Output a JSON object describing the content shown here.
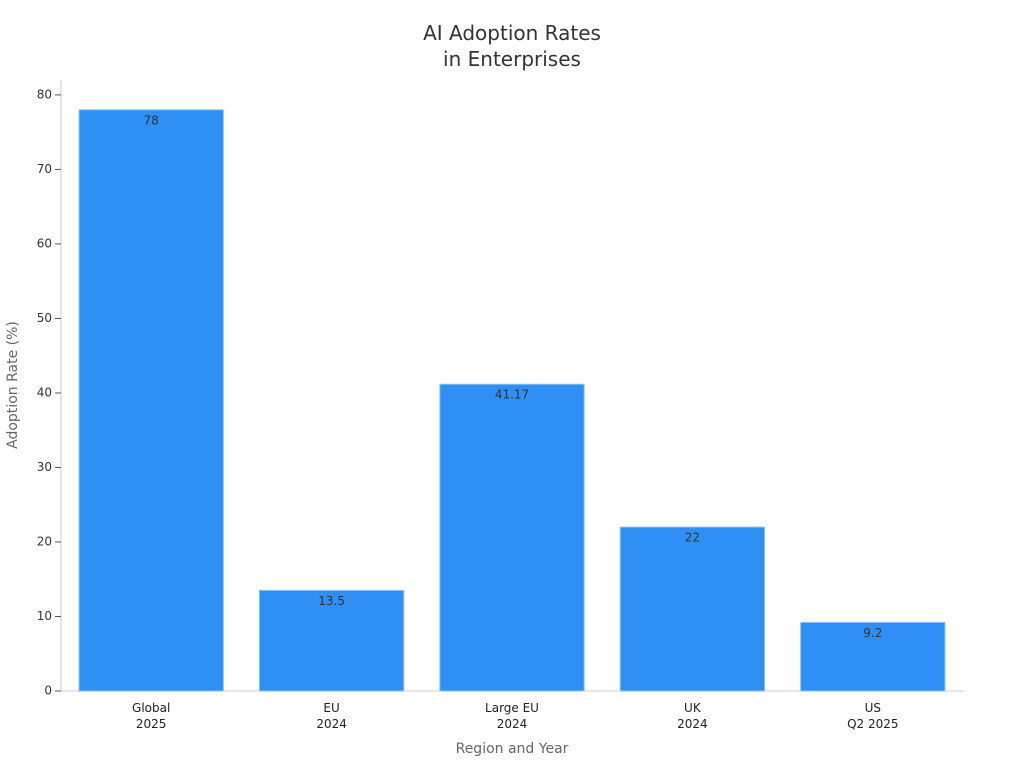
{
  "chart_data": {
    "type": "bar",
    "title": "AI Adoption Rates\nin Enterprises",
    "x_label": "Region and Year",
    "y_label": "Adoption Rate (%)",
    "categories": [
      "Global\n2025",
      "EU\n2024",
      "Large EU\n2024",
      "UK\n2024",
      "US\nQ2 2025"
    ],
    "values": [
      78,
      13.5,
      41.17,
      22,
      9.2
    ],
    "color": "#2e90f5",
    "ylim": [
      0,
      82
    ],
    "yticks": [
      0,
      10,
      20,
      30,
      40,
      50,
      60,
      70,
      80
    ],
    "grid": false
  }
}
